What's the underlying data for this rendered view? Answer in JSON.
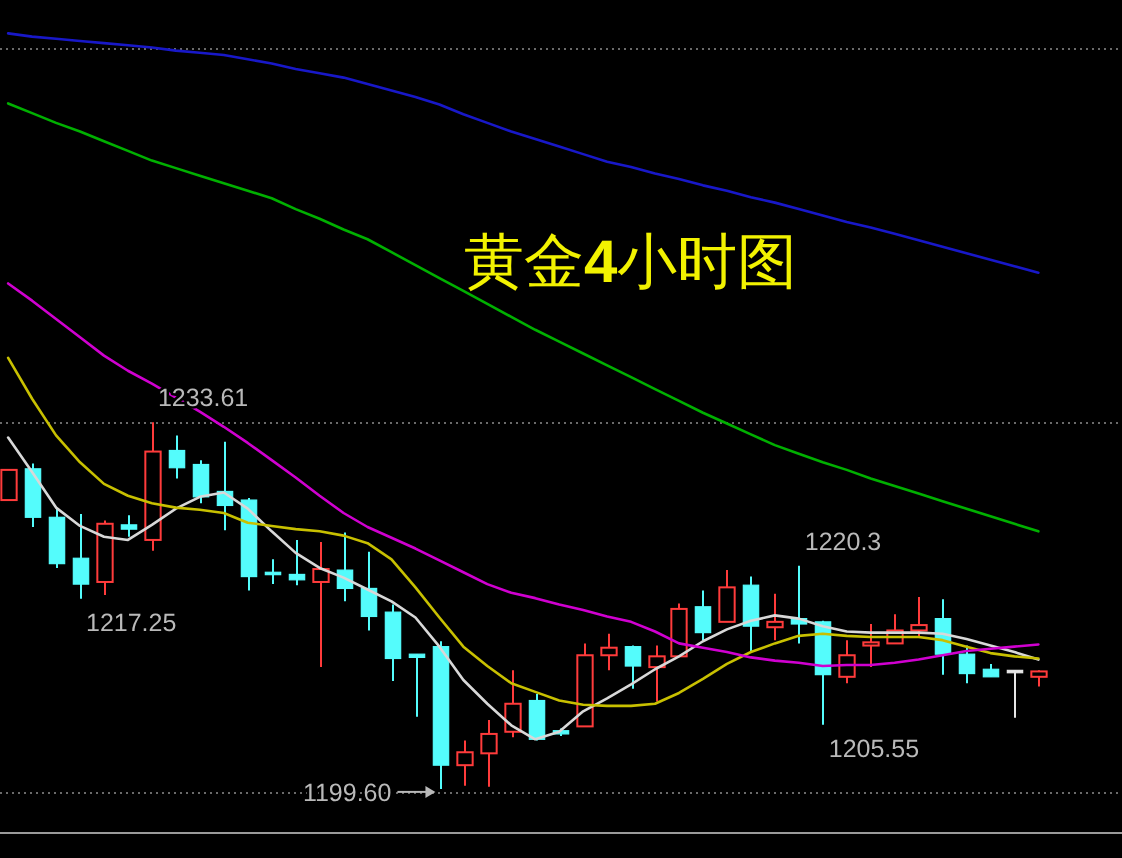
{
  "chart_data": {
    "type": "candlestick",
    "title": "黄金4小时图",
    "categories": [
      null,
      null,
      null,
      null,
      null,
      null,
      null,
      null,
      null,
      null,
      null,
      null,
      null,
      null,
      null,
      null,
      null,
      null,
      null,
      null,
      null,
      null,
      null,
      null,
      null,
      null,
      null,
      null,
      null,
      null,
      null,
      null,
      null,
      null,
      null,
      null,
      null,
      null,
      null,
      null,
      null,
      null,
      null,
      null
    ],
    "ylim": [
      1195.6,
      1272.8
    ],
    "yticks": [
      {
        "value": 1268.3,
        "label": null
      },
      {
        "value": 1233.6,
        "label": null
      },
      {
        "value": 1199.3,
        "label": null
      }
    ],
    "grid": "y",
    "ohlc": [
      [
        1226.4,
        1229.2,
        1226.4,
        1229.2
      ],
      [
        1229.3,
        1229.8,
        1223.9,
        1224.8
      ],
      [
        1224.8,
        1225.6,
        1220.1,
        1220.5
      ],
      [
        1221.0,
        1225.1,
        1217.25,
        1218.6
      ],
      [
        1218.8,
        1224.5,
        1217.6,
        1224.2
      ],
      [
        1224.1,
        1225.0,
        1223.0,
        1223.7
      ],
      [
        1222.7,
        1233.61,
        1221.7,
        1230.9
      ],
      [
        1231.0,
        1232.4,
        1228.4,
        1229.4
      ],
      [
        1229.7,
        1230.1,
        1226.1,
        1226.7
      ],
      [
        1227.2,
        1231.8,
        1223.6,
        1225.9
      ],
      [
        1226.4,
        1226.6,
        1218.0,
        1219.3
      ],
      [
        1219.7,
        1220.9,
        1218.6,
        1219.5
      ],
      [
        1219.5,
        1222.7,
        1218.5,
        1219.0
      ],
      [
        1218.8,
        1222.5,
        1210.9,
        1220.0
      ],
      [
        1219.9,
        1223.4,
        1217.0,
        1218.2
      ],
      [
        1218.2,
        1221.6,
        1214.3,
        1215.6
      ],
      [
        1216.0,
        1216.7,
        1209.6,
        1211.7
      ],
      [
        1212.1,
        1212.1,
        1206.3,
        1211.8
      ],
      [
        1212.8,
        1213.3,
        1199.6,
        1201.8
      ],
      [
        1201.8,
        1204.1,
        1199.9,
        1203.0
      ],
      [
        1202.9,
        1206.0,
        1199.8,
        1204.7
      ],
      [
        1204.9,
        1210.6,
        1204.4,
        1207.5
      ],
      [
        1207.8,
        1208.4,
        1204.1,
        1204.2
      ],
      [
        1205.0,
        1205.2,
        1204.5,
        1204.7
      ],
      [
        1205.4,
        1213.1,
        1205.4,
        1212.0
      ],
      [
        1212.0,
        1214.0,
        1210.6,
        1212.7
      ],
      [
        1212.8,
        1212.9,
        1208.9,
        1211.0
      ],
      [
        1210.9,
        1212.9,
        1207.7,
        1211.9
      ],
      [
        1211.9,
        1216.8,
        1211.9,
        1216.3
      ],
      [
        1216.5,
        1218.0,
        1213.4,
        1214.1
      ],
      [
        1215.1,
        1219.9,
        1215.1,
        1218.3
      ],
      [
        1218.5,
        1219.3,
        1212.3,
        1214.7
      ],
      [
        1214.6,
        1217.7,
        1213.4,
        1215.1
      ],
      [
        1215.4,
        1220.3,
        1213.1,
        1214.9
      ],
      [
        1215.1,
        1215.2,
        1205.55,
        1210.2
      ],
      [
        1210.0,
        1213.4,
        1209.4,
        1212.0
      ],
      [
        1212.9,
        1214.9,
        1210.9,
        1213.2
      ],
      [
        1213.1,
        1215.8,
        1213.1,
        1214.3
      ],
      [
        1214.3,
        1217.4,
        1213.7,
        1214.8
      ],
      [
        1215.4,
        1217.2,
        1210.2,
        1212.1
      ],
      [
        1212.1,
        1212.9,
        1209.4,
        1210.3
      ],
      [
        1210.7,
        1211.2,
        1210.0,
        1210.0
      ],
      [
        1210.6,
        1210.6,
        1206.2,
        1210.6
      ],
      [
        1210.0,
        1210.6,
        1209.1,
        1210.5
      ]
    ],
    "colors": [
      "#ff3b3b",
      "#54fcfc",
      "#54fcfc",
      "#54fcfc",
      "#ff3b3b",
      "#54fcfc",
      "#ff3b3b",
      "#54fcfc",
      "#54fcfc",
      "#54fcfc",
      "#54fcfc",
      "#54fcfc",
      "#54fcfc",
      "#ff3b3b",
      "#54fcfc",
      "#54fcfc",
      "#54fcfc",
      "#54fcfc",
      "#54fcfc",
      "#ff3b3b",
      "#ff3b3b",
      "#ff3b3b",
      "#54fcfc",
      "#54fcfc",
      "#ff3b3b",
      "#ff3b3b",
      "#54fcfc",
      "#ff3b3b",
      "#ff3b3b",
      "#54fcfc",
      "#ff3b3b",
      "#54fcfc",
      "#ff3b3b",
      "#54fcfc",
      "#54fcfc",
      "#ff3b3b",
      "#ff3b3b",
      "#ff3b3b",
      "#ff3b3b",
      "#54fcfc",
      "#54fcfc",
      "#54fcfc",
      "#e6e6e6",
      "#ff3b3b"
    ],
    "series": [
      {
        "type": "line",
        "color": "#d8d8d8",
        "values": [
          1232.2,
          1229.0,
          1225.7,
          1224.0,
          1223.0,
          1222.7,
          1224.1,
          1225.6,
          1226.7,
          1227.1,
          1225.6,
          1223.5,
          1221.5,
          1220.1,
          1219.2,
          1218.1,
          1217.0,
          1215.5,
          1212.8,
          1209.7,
          1207.5,
          1205.5,
          1204.2,
          1204.9,
          1206.8,
          1208.0,
          1209.3,
          1210.7,
          1211.9,
          1213.3,
          1214.4,
          1215.2,
          1215.7,
          1215.4,
          1214.7,
          1214.2,
          1214.1,
          1214.1,
          1214.1,
          1214.0,
          1213.5,
          1212.9,
          1212.3,
          1211.6
        ]
      },
      {
        "type": "line",
        "color": "#c8c000",
        "values": [
          1239.6,
          1235.8,
          1232.4,
          1229.9,
          1227.9,
          1226.8,
          1226.1,
          1225.7,
          1225.5,
          1225.2,
          1224.3,
          1224.0,
          1223.7,
          1223.5,
          1223.1,
          1222.4,
          1220.9,
          1218.3,
          1215.5,
          1212.8,
          1211.0,
          1209.4,
          1208.6,
          1207.8,
          1207.4,
          1207.3,
          1207.3,
          1207.5,
          1208.5,
          1209.8,
          1211.2,
          1212.3,
          1213.1,
          1213.8,
          1214.0,
          1213.8,
          1213.7,
          1213.7,
          1213.7,
          1213.4,
          1212.8,
          1212.2,
          1211.9,
          1211.7
        ]
      },
      {
        "type": "line",
        "color": "#d000d0",
        "values": [
          1246.5,
          1244.9,
          1243.2,
          1241.5,
          1239.8,
          1238.4,
          1237.2,
          1235.9,
          1234.6,
          1233.2,
          1231.7,
          1230.1,
          1228.5,
          1226.8,
          1225.2,
          1223.9,
          1222.9,
          1221.9,
          1220.8,
          1219.7,
          1218.6,
          1217.8,
          1217.3,
          1216.7,
          1216.2,
          1215.6,
          1215.1,
          1214.2,
          1213.1,
          1212.7,
          1212.3,
          1211.8,
          1211.5,
          1211.3,
          1211.0,
          1211.1,
          1211.1,
          1211.3,
          1211.6,
          1212.0,
          1212.4,
          1212.6,
          1212.8,
          1213.0
        ]
      },
      {
        "type": "line",
        "color": "#00b000",
        "values": [
          1263.2,
          1262.3,
          1261.4,
          1260.6,
          1259.7,
          1258.8,
          1257.9,
          1257.2,
          1256.5,
          1255.8,
          1255.1,
          1254.4,
          1253.4,
          1252.5,
          1251.5,
          1250.6,
          1249.4,
          1248.2,
          1247.0,
          1245.8,
          1244.6,
          1243.4,
          1242.2,
          1241.1,
          1240.0,
          1238.9,
          1237.8,
          1236.7,
          1235.6,
          1234.5,
          1233.5,
          1232.5,
          1231.5,
          1230.7,
          1229.9,
          1229.2,
          1228.4,
          1227.7,
          1227.0,
          1226.3,
          1225.6,
          1224.9,
          1224.2,
          1223.5
        ]
      },
      {
        "type": "line",
        "color": "#1818c8",
        "values": [
          1269.7,
          1269.4,
          1269.2,
          1269.0,
          1268.8,
          1268.6,
          1268.4,
          1268.1,
          1267.9,
          1267.7,
          1267.3,
          1266.9,
          1266.4,
          1266.0,
          1265.6,
          1265.0,
          1264.4,
          1263.8,
          1263.1,
          1262.2,
          1261.4,
          1260.6,
          1259.9,
          1259.2,
          1258.5,
          1257.8,
          1257.3,
          1256.7,
          1256.2,
          1255.6,
          1255.1,
          1254.5,
          1254.0,
          1253.4,
          1252.8,
          1252.2,
          1251.7,
          1251.1,
          1250.5,
          1249.9,
          1249.3,
          1248.7,
          1248.1,
          1247.5
        ]
      }
    ],
    "annotations": [
      "1233.61",
      "1217.25",
      "1199.60",
      "1220.3",
      "1205.55"
    ]
  }
}
